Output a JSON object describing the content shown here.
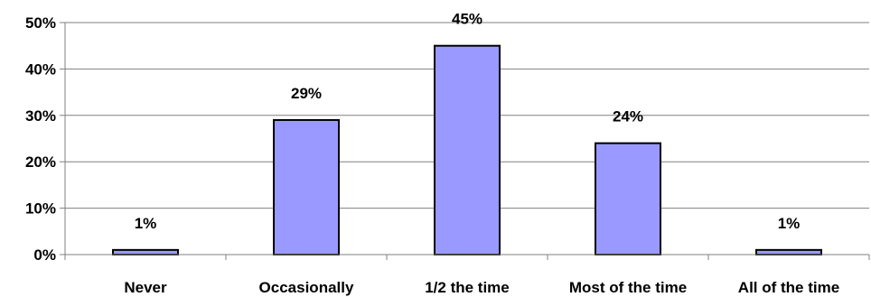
{
  "chart_data": {
    "type": "bar",
    "categories": [
      "Never",
      "Occasionally",
      "1/2 the time",
      "Most of the time",
      "All of the time"
    ],
    "values": [
      1,
      29,
      45,
      24,
      1
    ],
    "data_labels": [
      "1%",
      "29%",
      "45%",
      "24%",
      "1%"
    ],
    "title": "",
    "xlabel": "",
    "ylabel": "",
    "ylim": [
      0,
      50
    ],
    "yticks": [
      0,
      10,
      20,
      30,
      40,
      50
    ],
    "ytick_labels": [
      "0%",
      "10%",
      "20%",
      "30%",
      "40%",
      "50%"
    ],
    "grid": true,
    "legend": "none",
    "colors": {
      "bar_fill": "#9999ff",
      "bar_stroke": "#000000",
      "grid": "#808080",
      "axis": "#808080"
    }
  }
}
